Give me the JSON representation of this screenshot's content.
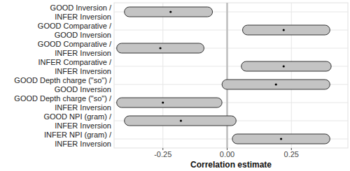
{
  "chart_data": {
    "type": "forest",
    "orientation": "horizontal",
    "grid": true,
    "x_label": "Correlation estimate",
    "categories": [
      "GOOD Inversion /\nINFER Inversion",
      "GOOD Comparative /\nGOOD Inversion",
      "GOOD Comparative /\nINFER Inversion",
      "INFER Comparative /\nINFER Inversion",
      "GOOD Depth charge (\"so\") /\nGOOD Inversion",
      "GOOD Depth charge (\"so\") /\nINFER Inversion",
      "GOOD NPI (gram) /\nINFER Inversion",
      "INFER NPI (gram) /\nINFER Inversion"
    ],
    "values": [
      -0.22,
      0.22,
      -0.26,
      0.22,
      0.19,
      -0.25,
      -0.18,
      0.21
    ],
    "lower": [
      -0.4,
      0.06,
      -0.43,
      0.055,
      -0.02,
      -0.43,
      -0.4,
      0.02
    ],
    "upper": [
      -0.057,
      0.4,
      -0.09,
      0.405,
      0.4,
      -0.02,
      0.035,
      0.4
    ],
    "xlim": [
      -0.44,
      0.47
    ],
    "xticks": [
      -0.25,
      {
        "value": 0,
        "label": "0.00"
      },
      0.25
    ],
    "reference_line": 0,
    "color": "#c4c4c4"
  }
}
